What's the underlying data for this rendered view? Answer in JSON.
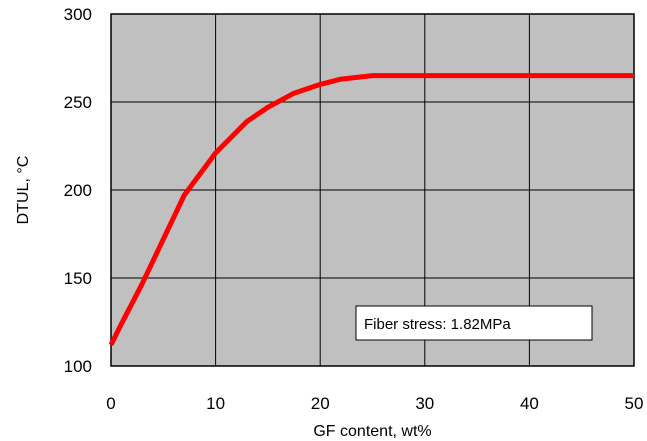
{
  "chart_data": {
    "type": "line",
    "title": "",
    "xlabel": "GF content, wt%",
    "ylabel": "DTUL, °C",
    "xlim": [
      0,
      50
    ],
    "ylim": [
      100,
      300
    ],
    "xticks": [
      0,
      10,
      20,
      30,
      40,
      50
    ],
    "yticks": [
      100,
      150,
      200,
      250,
      300
    ],
    "xtick_labels": [
      "0",
      "10",
      "20",
      "30",
      "40",
      "50"
    ],
    "ytick_labels": [
      "100",
      "150",
      "200",
      "250",
      "300"
    ],
    "grid": true,
    "legend": "none",
    "annotation": "Fiber stress: 1.82MPa",
    "colors": {
      "plot_background": "#c0c0c0",
      "line": "#ff0000",
      "grid": "#000000"
    },
    "series": [
      {
        "x": [
          0,
          1,
          3,
          5,
          7,
          10,
          13,
          15,
          17.5,
          20,
          22,
          25,
          30,
          40,
          50
        ],
        "y": [
          112,
          124,
          147,
          172,
          197,
          221,
          239,
          247,
          255,
          260,
          263,
          265,
          265,
          265,
          265
        ]
      }
    ]
  }
}
